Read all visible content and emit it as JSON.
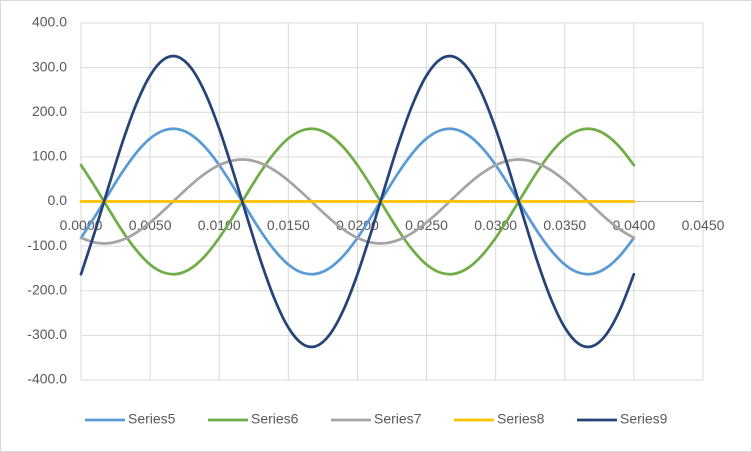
{
  "chart_data": {
    "type": "line",
    "x": [
      0,
      0.001,
      0.002,
      0.003,
      0.004,
      0.005,
      0.006,
      0.007,
      0.008,
      0.009,
      0.01,
      0.011,
      0.012,
      0.013,
      0.014,
      0.015,
      0.016,
      0.017,
      0.018,
      0.019,
      0.02,
      0.021,
      0.022,
      0.023,
      0.024,
      0.025,
      0.026,
      0.027,
      0.028,
      0.029,
      0.03,
      0.031,
      0.032,
      0.033,
      0.034,
      0.035,
      0.036,
      0.037,
      0.038,
      0.039,
      0.04
    ],
    "series": [
      {
        "name": "Series5",
        "color": "#5b9bd5",
        "values": [
          -81.5,
          -33.9,
          17.0,
          66.3,
          109.1,
          141.2,
          159.4,
          162.1,
          148.9,
          121.1,
          81.5,
          33.9,
          -17.0,
          -66.3,
          -109.1,
          -141.2,
          -159.4,
          -162.1,
          -148.9,
          -121.1,
          -81.5,
          -33.9,
          17.0,
          66.3,
          109.1,
          141.2,
          159.4,
          162.1,
          148.9,
          121.1,
          81.5,
          33.9,
          -17.0,
          -66.3,
          -109.1,
          -141.2,
          -159.4,
          -162.1,
          -148.9,
          -121.1,
          -81.5
        ]
      },
      {
        "name": "Series6",
        "color": "#70ad47",
        "values": [
          81.5,
          33.9,
          -17.0,
          -66.3,
          -109.1,
          -141.2,
          -159.4,
          -162.1,
          -148.9,
          -121.1,
          -81.5,
          -33.9,
          17.0,
          66.3,
          109.1,
          141.2,
          159.4,
          162.1,
          148.9,
          121.1,
          81.5,
          33.9,
          -17.0,
          -66.3,
          -109.1,
          -141.2,
          -159.4,
          -162.1,
          -148.9,
          -121.1,
          -81.5,
          -33.9,
          17.0,
          66.3,
          109.1,
          141.2,
          159.4,
          162.1,
          148.9,
          121.1,
          81.5
        ]
      },
      {
        "name": "Series7",
        "color": "#a5a5a5",
        "values": [
          -81.4,
          -91.9,
          -93.5,
          -85.9,
          -69.9,
          -47.0,
          -19.5,
          9.8,
          38.2,
          62.9,
          81.4,
          91.9,
          93.5,
          85.9,
          69.9,
          47.0,
          19.5,
          -9.8,
          -38.2,
          -62.9,
          -81.4,
          -91.9,
          -93.5,
          -85.9,
          -69.9,
          -47.0,
          -19.5,
          9.8,
          38.2,
          62.9,
          81.4,
          91.9,
          93.5,
          85.9,
          69.9,
          47.0,
          19.5,
          -9.8,
          -38.2,
          -62.9,
          -81.4
        ]
      },
      {
        "name": "Series8",
        "color": "#ffc000",
        "values": [
          0,
          0,
          0,
          0,
          0,
          0,
          0,
          0,
          0,
          0,
          0,
          0,
          0,
          0,
          0,
          0,
          0,
          0,
          0,
          0,
          0,
          0,
          0,
          0,
          0,
          0,
          0,
          0,
          0,
          0,
          0,
          0,
          0,
          0,
          0,
          0,
          0,
          0,
          0,
          0,
          0
        ]
      },
      {
        "name": "Series9",
        "color": "#264478",
        "values": [
          -163,
          -67.8,
          34.0,
          132.6,
          218.2,
          282.4,
          318.8,
          324.2,
          297.8,
          242.2,
          163,
          67.8,
          -34.0,
          -132.6,
          -218.2,
          -282.4,
          -318.8,
          -324.2,
          -297.8,
          -242.2,
          -163,
          -67.8,
          34.0,
          132.6,
          218.2,
          282.4,
          318.8,
          324.2,
          297.8,
          242.2,
          163,
          67.8,
          -34.0,
          -132.6,
          -218.2,
          -282.4,
          -318.8,
          -324.2,
          -297.8,
          -242.2,
          -163
        ]
      }
    ],
    "xlim": [
      0,
      0.045
    ],
    "xticks": [
      {
        "value": 0,
        "label": "0.0000"
      },
      {
        "value": 0.005,
        "label": "0.0050"
      },
      {
        "value": 0.01,
        "label": "0.0100"
      },
      {
        "value": 0.015,
        "label": "0.0150"
      },
      {
        "value": 0.02,
        "label": "0.0200"
      },
      {
        "value": 0.025,
        "label": "0.0250"
      },
      {
        "value": 0.03,
        "label": "0.0300"
      },
      {
        "value": 0.035,
        "label": "0.0350"
      },
      {
        "value": 0.04,
        "label": "0.0400"
      },
      {
        "value": 0.045,
        "label": "0.0450"
      }
    ],
    "ylim": [
      -400,
      400
    ],
    "yticks": [
      {
        "value": -400,
        "label": "-400.0"
      },
      {
        "value": -300,
        "label": "-300.0"
      },
      {
        "value": -200,
        "label": "-200.0"
      },
      {
        "value": -100,
        "label": "-100.0"
      },
      {
        "value": 0,
        "label": "0.0"
      },
      {
        "value": 100,
        "label": "100.0"
      },
      {
        "value": 200,
        "label": "200.0"
      },
      {
        "value": 300,
        "label": "300.0"
      },
      {
        "value": 400,
        "label": "400.0"
      }
    ],
    "grid": true,
    "smooth": true,
    "legend": "bottom"
  }
}
